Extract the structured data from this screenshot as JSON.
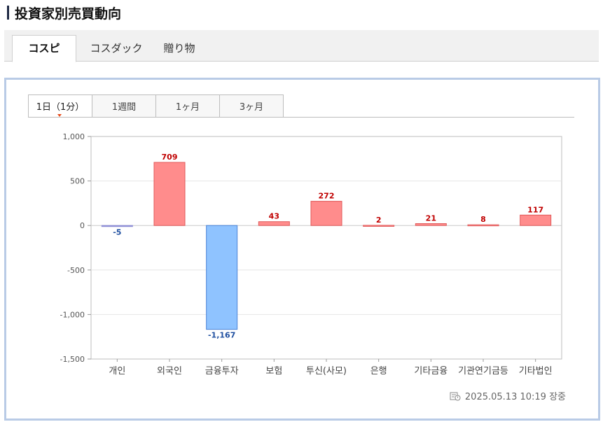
{
  "page": {
    "title": "投資家別売買動向"
  },
  "market_tabs": [
    {
      "label": "コスピ",
      "active": true
    },
    {
      "label": "コスダック",
      "active": false
    },
    {
      "label": "贈り物",
      "active": false
    }
  ],
  "period_tabs": [
    {
      "label": "1日（1分）",
      "active": true
    },
    {
      "label": "1週間",
      "active": false
    },
    {
      "label": "1ヶ月",
      "active": false
    },
    {
      "label": "3ヶ月",
      "active": false
    }
  ],
  "timestamp": "2025.05.13 10:19 장중",
  "colors": {
    "positive_fill": "#ff8c8c",
    "positive_stroke": "#e05a5a",
    "negative_fill": "#8fc3ff",
    "negative_stroke": "#4a82d6",
    "small_negative_fill": "#8f8fd6",
    "positive_label": "#c00000",
    "negative_label": "#1f4fa0"
  },
  "chart_data": {
    "type": "bar",
    "categories": [
      "개인",
      "외국인",
      "금융투자",
      "보험",
      "투신(사모)",
      "은행",
      "기타금융",
      "기관연기금등",
      "기타법인"
    ],
    "values": [
      -5,
      709,
      -1167,
      43,
      272,
      2,
      21,
      8,
      117
    ],
    "value_labels": [
      "-5",
      "709",
      "-1,167",
      "43",
      "272",
      "2",
      "21",
      "8",
      "117"
    ],
    "ylim": [
      -1500,
      1000
    ],
    "yticks": [
      1000,
      500,
      0,
      -500,
      -1000,
      -1500
    ],
    "ytick_labels": [
      "1,000",
      "500",
      "0",
      "-500",
      "-1,000",
      "-1,500"
    ],
    "grid": true
  }
}
